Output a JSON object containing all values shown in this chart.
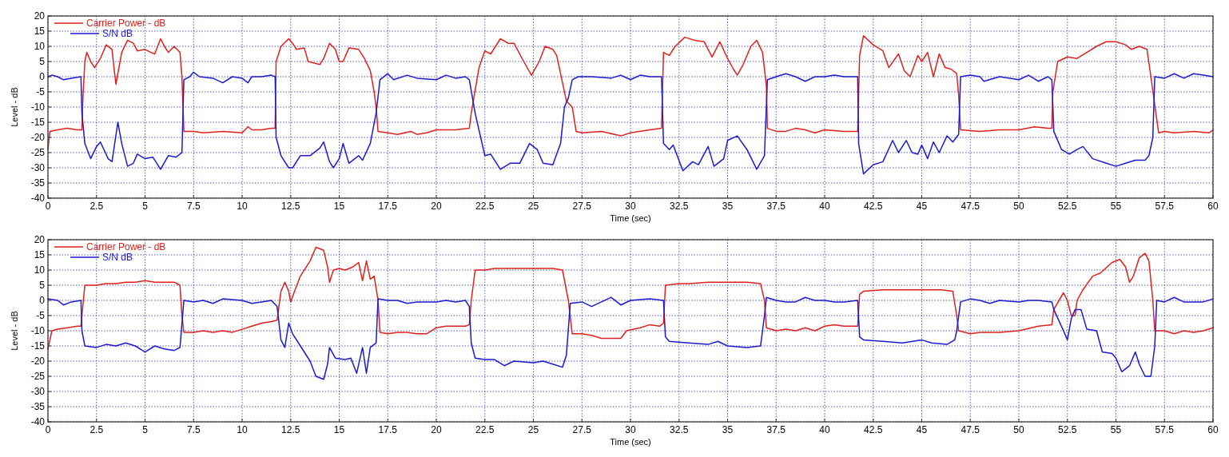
{
  "chart_data": [
    {
      "type": "line",
      "xlabel": "Time (sec)",
      "ylabel": "Level - dB",
      "xlim": [
        0,
        60
      ],
      "ylim": [
        -40,
        20
      ],
      "xticks": [
        0,
        2.5,
        5,
        7.5,
        10,
        12.5,
        15,
        17.5,
        20,
        22.5,
        25,
        27.5,
        30,
        32.5,
        35,
        37.5,
        40,
        42.5,
        45,
        47.5,
        50,
        52.5,
        55,
        57.5,
        60
      ],
      "yticks": [
        -40,
        -35,
        -30,
        -25,
        -20,
        -15,
        -10,
        -5,
        0,
        5,
        10,
        15,
        20
      ],
      "grid": true,
      "legend": "top left",
      "line_style": "solid",
      "series": [
        {
          "name": "Carrier Power - dB",
          "color": "#e0201c",
          "x": [
            0,
            0.1,
            0.5,
            1,
            1.5,
            1.75,
            1.8,
            1.9,
            2.0,
            2.2,
            2.4,
            2.7,
            3.0,
            3.3,
            3.4,
            3.5,
            3.6,
            3.8,
            4.1,
            4.4,
            4.6,
            5.0,
            5.3,
            5.5,
            5.8,
            6.0,
            6.2,
            6.5,
            6.8,
            6.9,
            7.0,
            7.5,
            8,
            9,
            10,
            10.3,
            10.5,
            11,
            11.5,
            11.7,
            11.75,
            12,
            12.4,
            12.6,
            12.8,
            13.2,
            13.4,
            14,
            14.2,
            14.5,
            14.8,
            15,
            15.2,
            15.5,
            16,
            16.3,
            16.6,
            16.8,
            16.9,
            17.0,
            17.5,
            18,
            18.7,
            19,
            19.5,
            20,
            21,
            21.7,
            21.8,
            22.2,
            22.5,
            22.8,
            23.3,
            23.7,
            24,
            24.5,
            24.9,
            25.3,
            25.6,
            26,
            26.2,
            26.5,
            26.7,
            27,
            27.2,
            27.5,
            28.5,
            29.5,
            30,
            31,
            31.6,
            31.7,
            32,
            32.3,
            32.8,
            33.3,
            33.8,
            34.2,
            34.6,
            35,
            35.3,
            35.5,
            35.8,
            36.2,
            36.5,
            36.8,
            37.0,
            37.05,
            37.5,
            38,
            38.5,
            39,
            39.5,
            40,
            41,
            41.7,
            41.8,
            42,
            42.5,
            43,
            43.3,
            43.8,
            44.1,
            44.4,
            44.8,
            45,
            45.3,
            45.6,
            45.9,
            46.2,
            46.5,
            46.8,
            46.9,
            47,
            48,
            49,
            50,
            50.8,
            51.5,
            51.7,
            51.75,
            52,
            52.5,
            53,
            53.5,
            54,
            54.5,
            55,
            55.5,
            55.8,
            56.2,
            56.6,
            56.8,
            57.2,
            57.5,
            58,
            59,
            59.8,
            60
          ],
          "values": [
            -24,
            -18,
            -17.5,
            -17,
            -17.5,
            -17.5,
            -7,
            5,
            8,
            5,
            3,
            6,
            10.5,
            9,
            3,
            -2.5,
            1,
            8,
            12,
            11,
            8.5,
            9,
            8,
            7.5,
            12.5,
            10,
            8,
            10,
            8,
            0,
            -18,
            -18,
            -18.5,
            -18,
            -18.5,
            -16.5,
            -17.5,
            -17.5,
            -17,
            -17,
            5,
            10,
            12.5,
            11,
            9,
            9.5,
            5,
            4,
            6,
            11,
            9,
            5,
            5,
            9.5,
            9,
            6,
            2,
            -5,
            -10,
            -18,
            -18.5,
            -19,
            -18,
            -19,
            -18.5,
            -17.5,
            -17.5,
            -17,
            -12,
            3,
            8.5,
            7.5,
            12.5,
            11,
            11,
            5,
            0.5,
            5,
            10,
            9,
            7,
            -2,
            -8,
            -10,
            -18,
            -18.5,
            -18,
            -19.5,
            -18.5,
            -17.5,
            -17,
            8,
            7,
            10,
            13,
            12,
            11.5,
            6.5,
            11.5,
            6,
            2.5,
            0.5,
            4,
            10,
            12,
            8,
            -3,
            -17,
            -18,
            -18,
            -17,
            -17.5,
            -18.5,
            -17.5,
            -18,
            -18,
            7,
            13.5,
            10.5,
            8.5,
            3,
            7.5,
            2,
            0,
            7,
            5,
            8,
            0,
            7.5,
            3,
            2.5,
            1,
            -6,
            -17.5,
            -18,
            -17.5,
            -17.5,
            -16.5,
            -17,
            -17,
            -5,
            5,
            6.5,
            6,
            8,
            10,
            11.5,
            11.5,
            10.5,
            9,
            10,
            9,
            0,
            -18.5,
            -18,
            -18.5,
            -18,
            -18.5,
            -17.5
          ]
        },
        {
          "name": "S/N dB",
          "color": "#1a1ad0",
          "x": [
            0,
            0.2,
            0.5,
            0.8,
            1.2,
            1.7,
            1.75,
            1.9,
            2.2,
            2.5,
            2.7,
            3.1,
            3.3,
            3.6,
            3.8,
            4.1,
            4.4,
            4.6,
            5,
            5.4,
            5.8,
            6.2,
            6.6,
            6.9,
            7.0,
            7.3,
            7.5,
            7.8,
            8.5,
            9,
            9.5,
            10.0,
            10.3,
            10.5,
            11.0,
            11.5,
            11.7,
            11.75,
            12,
            12.4,
            12.6,
            13,
            13.5,
            14,
            14.2,
            14.5,
            14.7,
            15,
            15.2,
            15.5,
            16,
            16.2,
            16.6,
            16.9,
            17.1,
            17.5,
            17.8,
            18.5,
            19,
            20,
            20.5,
            21,
            21.5,
            21.7,
            22.0,
            22.5,
            22.8,
            23.3,
            23.8,
            24.3,
            24.8,
            25.2,
            25.5,
            26,
            26.4,
            26.6,
            26.8,
            27.0,
            27.3,
            28,
            29,
            29.5,
            30,
            30.5,
            31,
            31.6,
            31.7,
            32,
            32.2,
            32.7,
            33.2,
            33.5,
            34,
            34.3,
            34.8,
            35.0,
            35.5,
            36,
            36.5,
            36.9,
            37.05,
            37.5,
            38,
            38.5,
            39,
            39.5,
            40,
            40.5,
            41,
            41.7,
            41.75,
            42,
            42.5,
            43,
            43.5,
            43.8,
            44.2,
            44.5,
            44.8,
            45,
            45.3,
            45.6,
            45.9,
            46.3,
            46.6,
            46.9,
            47,
            47.5,
            48,
            48.2,
            49,
            50,
            50.5,
            51,
            51.5,
            51.7,
            51.8,
            52.2,
            52.6,
            53,
            53.3,
            53.8,
            54.5,
            55,
            55.5,
            56,
            56.5,
            56.7,
            56.9,
            57.0,
            57.5,
            58,
            58.5,
            59,
            59.5,
            60
          ],
          "values": [
            0,
            0.5,
            0,
            -1,
            -0.5,
            0,
            -12,
            -22,
            -27,
            -23,
            -21.5,
            -27,
            -28,
            -15,
            -22,
            -29.5,
            -28.5,
            -25.5,
            -27,
            -26.5,
            -30.5,
            -26,
            -26.5,
            -25,
            -1,
            0,
            1.5,
            0,
            -0.5,
            -2,
            0,
            -0.5,
            -2,
            0,
            0,
            0.5,
            0,
            -20,
            -26,
            -30,
            -30,
            -26,
            -26,
            -23.5,
            -21.5,
            -28,
            -30,
            -27,
            -22,
            -28.5,
            -26,
            -27.5,
            -22,
            -12,
            -1,
            1,
            -1,
            0.5,
            -0.5,
            -1,
            0.5,
            -0.5,
            0,
            -1,
            -12,
            -26,
            -25.5,
            -30.5,
            -28.5,
            -28.5,
            -22,
            -24,
            -28.5,
            -29,
            -22,
            -10,
            -7,
            -1,
            0,
            0,
            -0.5,
            0.5,
            -1,
            0.5,
            0,
            0,
            -22,
            -24,
            -22.5,
            -31,
            -28,
            -29,
            -23,
            -29.5,
            -27,
            -21,
            -19.5,
            -24,
            -30.5,
            -26,
            -1,
            0,
            1,
            0,
            -1.5,
            0,
            0,
            0.5,
            0,
            0,
            -22,
            -32,
            -29,
            -28,
            -21,
            -25,
            -21,
            -25,
            -25.5,
            -22.5,
            -27,
            -21.5,
            -25,
            -19.5,
            -21.5,
            -19,
            0,
            0.5,
            0,
            -1.5,
            0,
            -1,
            0.5,
            -1.5,
            0,
            -1,
            -18,
            -24,
            -25.5,
            -24,
            -23,
            -27,
            -28.5,
            -29.5,
            -28.5,
            -27.5,
            -27.5,
            -26,
            -20,
            0,
            -0.5,
            1,
            -0.5,
            1,
            0.5,
            0
          ]
        }
      ]
    },
    {
      "type": "line",
      "xlabel": "Time (sec)",
      "ylabel": "Level - dB",
      "xlim": [
        0,
        60
      ],
      "ylim": [
        -40,
        20
      ],
      "xticks": [
        0,
        2.5,
        5,
        7.5,
        10,
        12.5,
        15,
        17.5,
        20,
        22.5,
        25,
        27.5,
        30,
        32.5,
        35,
        37.5,
        40,
        42.5,
        45,
        47.5,
        50,
        52.5,
        55,
        57.5,
        60
      ],
      "yticks": [
        -40,
        -35,
        -30,
        -25,
        -20,
        -15,
        -10,
        -5,
        0,
        5,
        10,
        15,
        20
      ],
      "grid": true,
      "legend": "top left",
      "line_style": "solid",
      "series": [
        {
          "name": "Carrier Power - dB",
          "color": "#e0201c",
          "x": [
            0,
            0.2,
            0.5,
            1,
            1.5,
            1.7,
            1.75,
            1.9,
            2.5,
            3,
            3.5,
            4,
            4.5,
            5,
            5.5,
            6,
            6.5,
            6.8,
            6.9,
            7.0,
            7.5,
            8,
            8.5,
            9,
            9.5,
            10,
            10.5,
            11,
            11.5,
            11.8,
            12,
            12.2,
            12.4,
            12.5,
            12.7,
            13,
            13.5,
            13.8,
            14.2,
            14.4,
            14.5,
            14.7,
            15,
            15.3,
            15.7,
            16,
            16.2,
            16.4,
            16.6,
            16.8,
            17,
            17.1,
            17.5,
            18,
            18.5,
            19,
            19.5,
            20,
            20.5,
            21,
            21.5,
            21.7,
            21.8,
            22,
            22.5,
            23,
            24,
            25,
            26,
            26.5,
            26.8,
            27,
            27.5,
            28,
            28.5,
            29,
            29.5,
            29.8,
            30.5,
            31,
            31.5,
            31.7,
            31.8,
            32.5,
            33,
            34,
            35,
            36,
            36.7,
            36.9,
            37.0,
            37.5,
            38,
            38.5,
            39,
            39.5,
            40,
            40.5,
            41,
            41.7,
            41.8,
            42,
            43,
            44,
            45,
            46,
            46.6,
            46.8,
            46.9,
            47.5,
            48,
            49,
            50,
            51,
            51.7,
            51.8,
            52.3,
            52.5,
            52.7,
            52.9,
            53.0,
            53.3,
            53.8,
            54.2,
            54.8,
            55.2,
            55.5,
            55.7,
            55.9,
            56.2,
            56.5,
            56.7,
            56.9,
            57,
            57.5,
            58,
            58.5,
            59,
            59.5,
            60
          ],
          "values": [
            -16,
            -10,
            -9.5,
            -9,
            -8.5,
            -8.5,
            -5,
            5,
            5,
            5.5,
            5.5,
            6,
            6,
            6.5,
            6,
            6,
            6,
            5,
            -5,
            -10.5,
            -10.5,
            -10,
            -10.5,
            -10,
            -10.5,
            -9.5,
            -8.5,
            -7.5,
            -7,
            -6.5,
            3,
            6,
            3,
            -0.5,
            3,
            8,
            13,
            17.5,
            16.5,
            11,
            6,
            10,
            10.5,
            10,
            11,
            12.5,
            6.5,
            13,
            7,
            8,
            0,
            -10.5,
            -11,
            -10.5,
            -10.5,
            -11,
            -11,
            -9,
            -8.5,
            -8.5,
            -8.5,
            -8,
            0,
            10,
            10,
            10.5,
            10.5,
            10.5,
            10.5,
            10,
            0,
            -11,
            -11,
            -11.5,
            -12.5,
            -12.5,
            -12.5,
            -10,
            -9,
            -8,
            -8.5,
            -7.5,
            5,
            5.5,
            5.5,
            6,
            6,
            6,
            5.5,
            0,
            -9,
            -10,
            -9.5,
            -10,
            -9,
            -10,
            -8.5,
            -8,
            -8.5,
            -8.5,
            2,
            3,
            3.5,
            3.5,
            3.5,
            3.5,
            3,
            -5,
            -10,
            -11,
            -10.5,
            -10.5,
            -10,
            -8.5,
            -8,
            -3,
            2.5,
            0,
            -5,
            -5,
            0,
            3.5,
            8,
            9,
            12.5,
            13.5,
            11,
            6,
            8,
            14,
            15.5,
            13,
            0,
            -10,
            -10,
            -11,
            -10,
            -10.5,
            -10,
            -9
          ]
        },
        {
          "name": "S/N dB",
          "color": "#1a1ad0",
          "x": [
            0,
            0.5,
            0.8,
            1.2,
            1.7,
            1.75,
            1.9,
            2.5,
            3,
            3.5,
            4,
            4.5,
            5,
            5.5,
            6,
            6.5,
            6.8,
            7.0,
            7.5,
            8,
            8.5,
            9,
            10,
            10.5,
            11,
            11.5,
            11.8,
            12,
            12.2,
            12.4,
            12.6,
            13,
            13.5,
            13.8,
            14.2,
            14.4,
            14.5,
            14.8,
            15.3,
            15.6,
            15.9,
            16.2,
            16.4,
            16.6,
            16.9,
            17.0,
            17.5,
            18,
            18.5,
            19,
            20,
            20.5,
            21,
            21.5,
            21.7,
            21.8,
            22,
            22.5,
            23,
            23.5,
            24,
            25,
            25.5,
            26,
            26.5,
            26.7,
            26.9,
            27.5,
            28,
            28.5,
            29,
            29.5,
            30,
            31,
            31.7,
            31.8,
            32,
            33,
            34,
            34.5,
            35,
            36,
            36.7,
            36.9,
            37.0,
            37.5,
            38,
            38.5,
            39,
            39.5,
            40,
            40.5,
            41,
            41.7,
            41.8,
            42,
            43,
            44,
            45,
            45.5,
            46.3,
            46.7,
            46.8,
            47,
            47.5,
            48,
            48.5,
            49,
            50,
            50.5,
            51,
            51.7,
            51.8,
            52.3,
            52.5,
            52.7,
            52.9,
            53.2,
            53.5,
            54,
            54.3,
            54.8,
            55,
            55.3,
            55.7,
            56,
            56.2,
            56.5,
            56.8,
            57,
            57.1,
            57.5,
            58,
            58.5,
            59,
            59.5,
            60
          ],
          "values": [
            0.5,
            0,
            -1.5,
            -0.5,
            0,
            -10,
            -15,
            -15.5,
            -14.5,
            -15,
            -14,
            -15,
            -17,
            -15,
            -16,
            -16.5,
            -15.5,
            0,
            -0.5,
            0,
            -1,
            0.5,
            0,
            -1,
            -0.5,
            0,
            -2,
            -13,
            -15.5,
            -7.5,
            -11,
            -15,
            -20,
            -25,
            -26,
            -21,
            -15.5,
            -19,
            -19.5,
            -19,
            -24,
            -15.5,
            -24,
            -15.5,
            -14,
            0.5,
            0,
            0,
            -1,
            -0.5,
            -0.5,
            0,
            -0.5,
            0,
            -2,
            -14,
            -19,
            -19.5,
            -19.5,
            -21.5,
            -20,
            -20.5,
            -20,
            -21,
            -22,
            -18,
            -1,
            -0.5,
            -2,
            -0.5,
            1,
            -1.5,
            0,
            0.5,
            0,
            -12,
            -13.5,
            -14,
            -14.5,
            -13.5,
            -15,
            -15.5,
            -15,
            -5,
            1,
            0,
            -0.5,
            -0.5,
            1,
            0,
            0,
            -0.5,
            -0.5,
            0,
            -12,
            -13,
            -13.5,
            -14,
            -13,
            -14,
            -14.5,
            -13,
            -10,
            -0.5,
            0.5,
            0,
            -1,
            0,
            -0.5,
            0,
            0,
            -0.5,
            -3,
            -10,
            -13,
            -6,
            -3,
            -3,
            -9.5,
            -10,
            -17,
            -17.5,
            -19,
            -23.5,
            -21.5,
            -17,
            -21,
            -25,
            -25,
            -15,
            0,
            -0.5,
            1,
            -0.5,
            -0.5,
            -0.5,
            0.5
          ]
        }
      ]
    }
  ]
}
